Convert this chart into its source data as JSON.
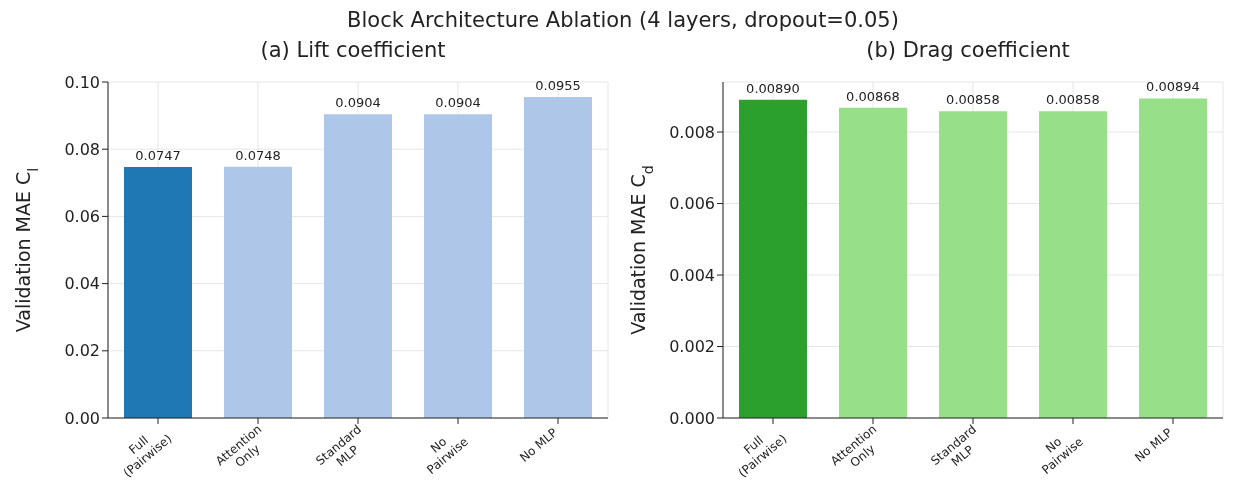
{
  "chart_data": [
    {
      "type": "bar",
      "title": "(a) Lift coefficient",
      "ylabel": "Validation MAE C$_{l}$",
      "annotations": [
        "Block Architecture Ablation (4 layers, dropout=0.05)"
      ],
      "categories": [
        "Full\n(Pairwise)",
        "Attention\nOnly",
        "Standard\nMLP",
        "No\nPairwise",
        "No MLP"
      ],
      "values": [
        0.0747,
        0.0748,
        0.0904,
        0.0904,
        0.0955
      ],
      "colors": [
        "#1f77b4",
        "#aec7e8",
        "#aec7e8",
        "#aec7e8",
        "#aec7e8"
      ],
      "value_labels": [
        "0.0747",
        "0.0748",
        "0.0904",
        "0.0904",
        "0.0955"
      ],
      "ylim": [
        0,
        0.1
      ],
      "yticks": [
        {
          "value": 0,
          "label": "0.00"
        },
        {
          "value": 0.02,
          "label": "0.02"
        },
        {
          "value": 0.04,
          "label": "0.04"
        },
        {
          "value": 0.06,
          "label": "0.06"
        },
        {
          "value": 0.08,
          "label": "0.08"
        },
        {
          "value": 0.1,
          "label": "0.10"
        }
      ],
      "grid": true,
      "legend": false
    },
    {
      "type": "bar",
      "title": "(b) Drag coefficient",
      "ylabel": "Validation MAE C$_{d}$",
      "categories": [
        "Full\n(Pairwise)",
        "Attention\nOnly",
        "Standard\nMLP",
        "No\nPairwise",
        "No MLP"
      ],
      "values": [
        0.0089,
        0.00868,
        0.00858,
        0.00858,
        0.00894
      ],
      "colors": [
        "#2ca02c",
        "#98df8a",
        "#98df8a",
        "#98df8a",
        "#98df8a"
      ],
      "value_labels": [
        "0.00890",
        "0.00868",
        "0.00858",
        "0.00858",
        "0.00894"
      ],
      "ylim": [
        0,
        0.0094
      ],
      "yticks": [
        {
          "value": 0,
          "label": "0.000"
        },
        {
          "value": 0.002,
          "label": "0.002"
        },
        {
          "value": 0.004,
          "label": "0.004"
        },
        {
          "value": 0.006,
          "label": "0.006"
        },
        {
          "value": 0.008,
          "label": "0.008"
        }
      ],
      "grid": true,
      "legend": false
    }
  ]
}
